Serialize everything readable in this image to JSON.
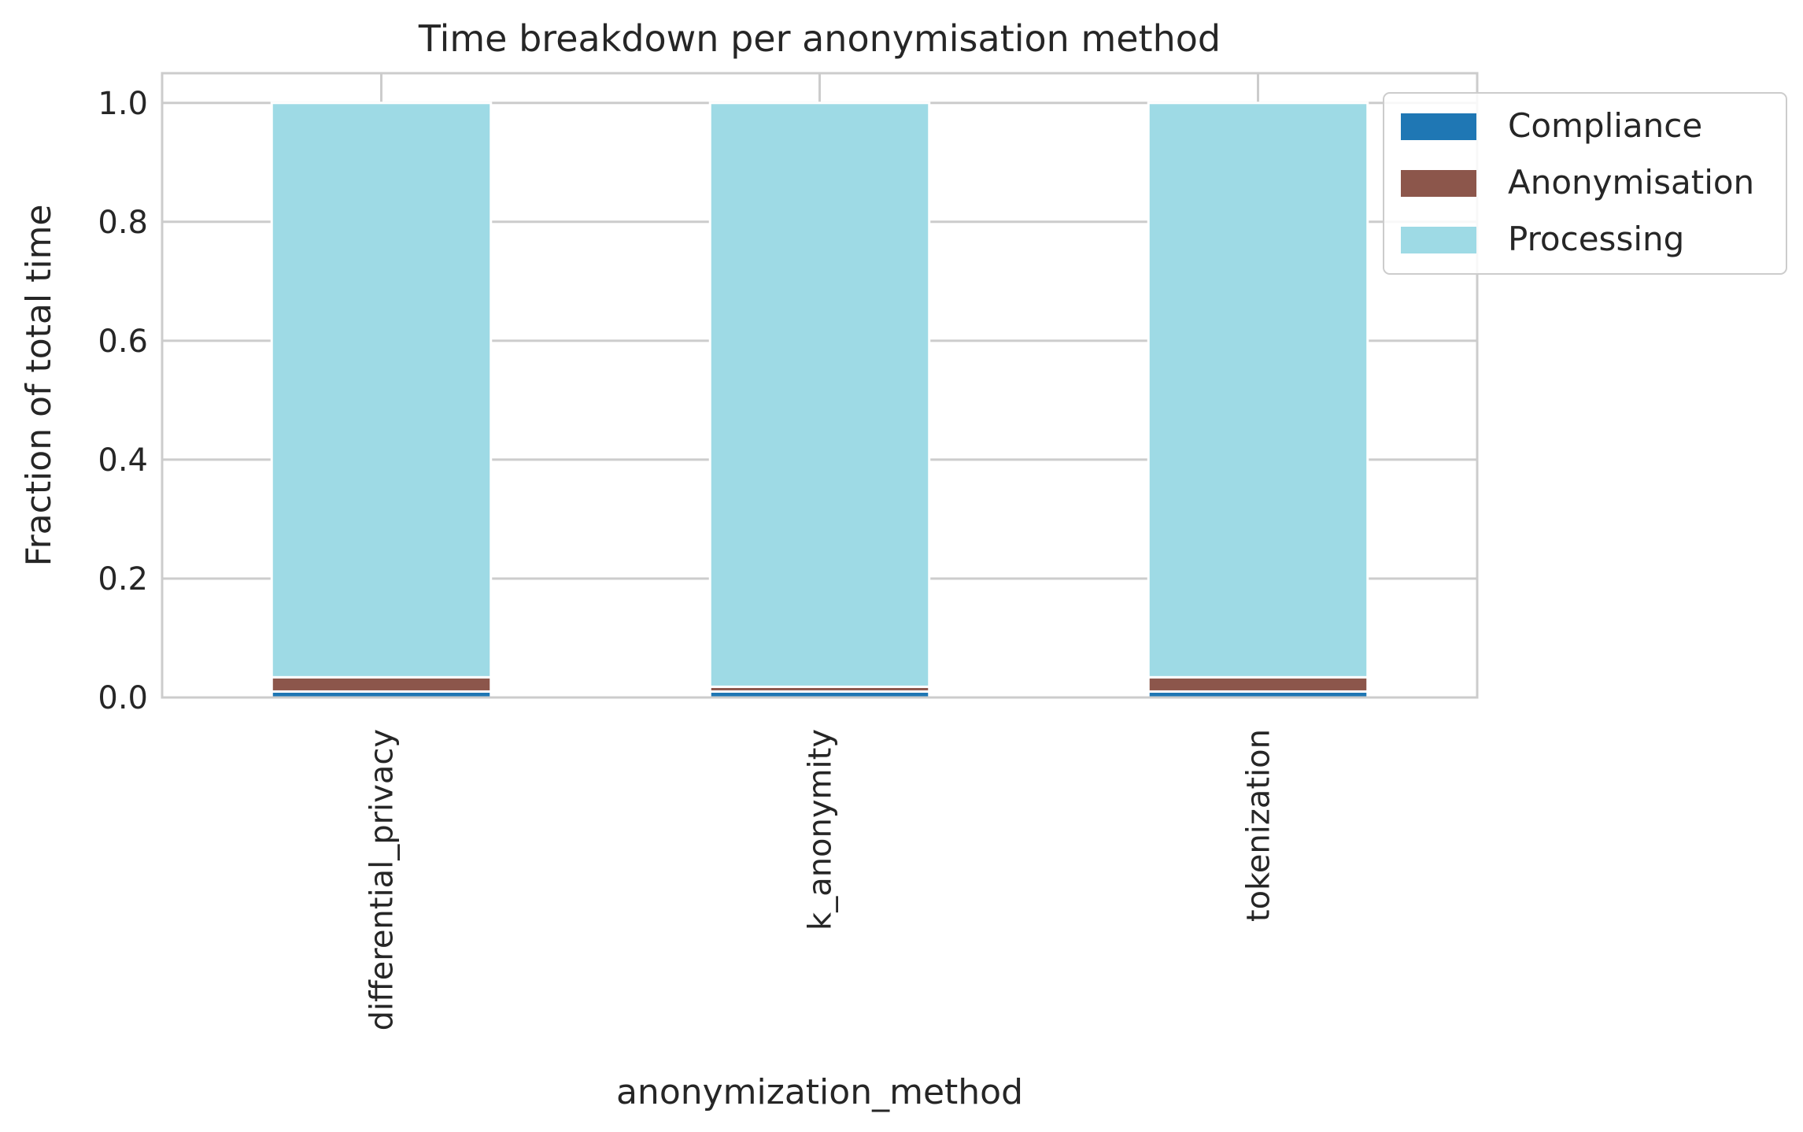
{
  "chart_data": {
    "type": "bar",
    "stacked": true,
    "title": "Time breakdown per anonymisation method",
    "xlabel": "anonymization_method",
    "ylabel": "Fraction of total time",
    "categories": [
      "differential_privacy",
      "k_anonymity",
      "tokenization"
    ],
    "series": [
      {
        "name": "Compliance",
        "color": "#1f77b4",
        "values": [
          0.01,
          0.01,
          0.01
        ]
      },
      {
        "name": "Anonymisation",
        "color": "#8c564b",
        "values": [
          0.024,
          0.008,
          0.024
        ]
      },
      {
        "name": "Processing",
        "color": "#9edae5",
        "values": [
          0.966,
          0.982,
          0.966
        ]
      }
    ],
    "ylim": [
      0,
      1.05
    ],
    "yticks": [
      "0.0",
      "0.2",
      "0.4",
      "0.6",
      "0.8",
      "1.0"
    ],
    "ytick_values": [
      0,
      0.2,
      0.4,
      0.6,
      0.8,
      1.0
    ],
    "grid": true,
    "legend_position": "upper right, outside plot"
  }
}
